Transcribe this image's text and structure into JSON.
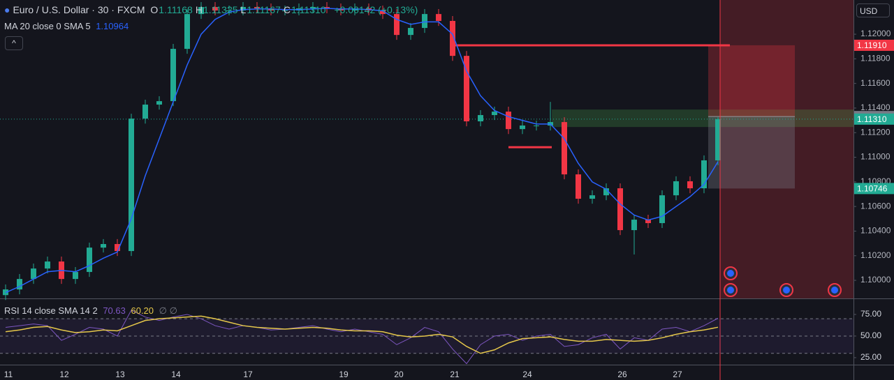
{
  "chart_data": [
    {
      "type": "candlestick",
      "title": "Euro / U.S. Dollar · 30 · FXCM",
      "ohlc_legend": [
        {
          "key": "O",
          "value": "1.11168"
        },
        {
          "key": "H",
          "value": "1.11325"
        },
        {
          "key": "L",
          "value": "1.11167"
        },
        {
          "key": "C",
          "value": "1.11310"
        }
      ],
      "change": "+0.00142 (+0.13%)",
      "currency": "USD",
      "colors": {
        "up": "#22ab94",
        "down": "#f23645"
      },
      "open": [
        1.0988,
        1.09926,
        1.10011,
        1.10096,
        1.10153,
        1.10011,
        1.10068,
        1.10266,
        1.10295,
        1.10238,
        1.11314,
        1.11428,
        1.11456,
        1.11881,
        1.12164,
        1.12221,
        1.12193,
        1.12193,
        1.12221,
        1.1221,
        1.12193,
        1.12193,
        1.1221,
        1.12221,
        1.1221,
        1.12193,
        1.1221,
        1.12193,
        1.12164,
        1.11994,
        1.12051,
        1.12164,
        1.12108,
        1.11824,
        1.11292,
        1.11343,
        1.11371,
        1.11229,
        1.11258,
        1.11258,
        1.11286,
        1.10861,
        1.10663,
        1.10691,
        1.10748,
        1.10408,
        1.10493,
        1.10465,
        1.10691,
        1.10805,
        1.10748,
        1.10975
      ],
      "high": [
        1.09966,
        1.10051,
        1.10136,
        1.10193,
        1.10193,
        1.10108,
        1.10306,
        1.10335,
        1.10335,
        1.11354,
        1.11468,
        1.11496,
        1.11921,
        1.12204,
        1.12261,
        1.12261,
        1.12233,
        1.12261,
        1.12261,
        1.1225,
        1.12233,
        1.1225,
        1.12261,
        1.12261,
        1.1225,
        1.1225,
        1.1225,
        1.12233,
        1.12204,
        1.12091,
        1.12204,
        1.12204,
        1.12148,
        1.11864,
        1.11383,
        1.11411,
        1.11411,
        1.11298,
        1.11298,
        1.1145,
        1.11326,
        1.10901,
        1.10731,
        1.10788,
        1.10788,
        1.10533,
        1.10533,
        1.10731,
        1.10845,
        1.10845,
        1.11015,
        1.11325
      ],
      "low": [
        1.0984,
        1.09886,
        1.09971,
        1.10056,
        1.09971,
        1.09971,
        1.10028,
        1.10226,
        1.10198,
        1.10198,
        1.11274,
        1.11388,
        1.11416,
        1.11841,
        1.12124,
        1.12153,
        1.12153,
        1.12153,
        1.1217,
        1.12153,
        1.12153,
        1.12153,
        1.1217,
        1.1217,
        1.12153,
        1.12153,
        1.12153,
        1.12124,
        1.11954,
        1.11954,
        1.12011,
        1.12068,
        1.11784,
        1.11252,
        1.11252,
        1.11303,
        1.11189,
        1.11189,
        1.11218,
        1.11218,
        1.10821,
        1.10623,
        1.10623,
        1.10651,
        1.10368,
        1.1021,
        1.10425,
        1.10425,
        1.10651,
        1.10708,
        1.10708,
        1.10935
      ],
      "close": [
        1.09926,
        1.10011,
        1.10096,
        1.10153,
        1.10011,
        1.10068,
        1.10266,
        1.10295,
        1.10238,
        1.11314,
        1.11428,
        1.11456,
        1.11881,
        1.12164,
        1.12221,
        1.12193,
        1.12193,
        1.12221,
        1.1221,
        1.12193,
        1.12193,
        1.1221,
        1.12221,
        1.1221,
        1.12193,
        1.1221,
        1.12193,
        1.12164,
        1.11994,
        1.12051,
        1.12164,
        1.12108,
        1.11824,
        1.11292,
        1.11343,
        1.11371,
        1.11229,
        1.11258,
        1.11258,
        1.11286,
        1.10861,
        1.10663,
        1.10691,
        1.10748,
        1.10408,
        1.10493,
        1.10465,
        1.10691,
        1.10805,
        1.10748,
        1.10975,
        1.1131
      ],
      "series": [
        {
          "name": "MA 20 close 0 SMA 5",
          "color": "#2962ff",
          "value_label": "1.10964",
          "values": [
            1.099,
            1.0995,
            1.1001,
            1.1007,
            1.1008,
            1.1007,
            1.1012,
            1.1018,
            1.1023,
            1.105,
            1.1085,
            1.1115,
            1.1145,
            1.1175,
            1.12,
            1.1212,
            1.1218,
            1.122,
            1.12205,
            1.12205,
            1.122,
            1.122,
            1.12205,
            1.1221,
            1.12205,
            1.12205,
            1.122,
            1.1219,
            1.1212,
            1.1208,
            1.121,
            1.121,
            1.12,
            1.117,
            1.115,
            1.1138,
            1.1133,
            1.113,
            1.1127,
            1.1127,
            1.1115,
            1.1095,
            1.108,
            1.1074,
            1.1062,
            1.1053,
            1.1049,
            1.1052,
            1.106,
            1.1068,
            1.1078,
            1.10964
          ]
        }
      ],
      "ylim": [
        1.09853,
        1.12278
      ],
      "yticks": [
        {
          "value": 1.1,
          "label": "1.10000"
        },
        {
          "value": 1.102,
          "label": "1.10200"
        },
        {
          "value": 1.104,
          "label": "1.10400"
        },
        {
          "value": 1.106,
          "label": "1.10600"
        },
        {
          "value": 1.108,
          "label": "1.10800"
        },
        {
          "value": 1.11,
          "label": "1.11000"
        },
        {
          "value": 1.112,
          "label": "1.11200"
        },
        {
          "value": 1.114,
          "label": "1.11400"
        },
        {
          "value": 1.116,
          "label": "1.11600"
        },
        {
          "value": 1.118,
          "label": "1.11800"
        },
        {
          "value": 1.12,
          "label": "1.12000"
        }
      ],
      "xticks": [
        {
          "value": 0.2,
          "label": "11"
        },
        {
          "value": 4.2,
          "label": "12"
        },
        {
          "value": 8.2,
          "label": "13"
        },
        {
          "value": 12.2,
          "label": "14"
        },
        {
          "value": 17.35,
          "label": "17"
        },
        {
          "value": 24.2,
          "label": "19"
        },
        {
          "value": 28.15,
          "label": "20"
        },
        {
          "value": 32.15,
          "label": "21"
        },
        {
          "value": 37.35,
          "label": "24"
        },
        {
          "value": 44.15,
          "label": "26"
        },
        {
          "value": 48.1,
          "label": "27"
        }
      ],
      "price_labels": [
        {
          "value": 1.1191,
          "label": "1.11910",
          "color": "#f23645"
        },
        {
          "value": 1.11331,
          "label": "1.11331",
          "color": "#787b86"
        },
        {
          "value": 1.1131,
          "label": "1.11310",
          "color": "#22ab94"
        },
        {
          "value": 1.10746,
          "label": "1.10746",
          "color": "#22ab94"
        }
      ],
      "horizontal_lines": [
        1.1191,
        1.11082
      ],
      "highlight_zone": [
        1.11388,
        1.11246
      ],
      "position": {
        "target": 1.1191,
        "entry": 1.11331,
        "stop": 1.10746
      },
      "last_price_line": 1.1131
    },
    {
      "type": "line",
      "title": "RSI 14 close SMA 14 2",
      "series": [
        {
          "color": "#7e57c2",
          "value_label": "70.63",
          "values": [
            60,
            62,
            64,
            62,
            45,
            52,
            60,
            58,
            50,
            80,
            72,
            68,
            72,
            75,
            70,
            62,
            58,
            62,
            60,
            57,
            58,
            60,
            62,
            58,
            55,
            58,
            55,
            52,
            40,
            48,
            60,
            55,
            35,
            18,
            40,
            50,
            52,
            45,
            50,
            52,
            38,
            40,
            48,
            52,
            35,
            48,
            45,
            58,
            60,
            55,
            62,
            70.63
          ]
        },
        {
          "color": "#e6c84a",
          "value_label": "60.20",
          "values": [
            55,
            57,
            60,
            61,
            57,
            54,
            55,
            57,
            56,
            62,
            68,
            70,
            71,
            72,
            73,
            70,
            66,
            62,
            60,
            59,
            58,
            59,
            60,
            59,
            57,
            56,
            56,
            55,
            51,
            49,
            50,
            52,
            49,
            38,
            30,
            34,
            42,
            47,
            48,
            49,
            46,
            44,
            44,
            46,
            45,
            44,
            45,
            48,
            52,
            55,
            57,
            60.2
          ]
        }
      ],
      "ylim": [
        17.7,
        91.9
      ],
      "yticks": [
        {
          "value": 75,
          "label": "75.00"
        },
        {
          "value": 50,
          "label": "50.00"
        },
        {
          "value": 25,
          "label": "25.00"
        }
      ],
      "levels": [
        70,
        50,
        30
      ]
    }
  ]
}
